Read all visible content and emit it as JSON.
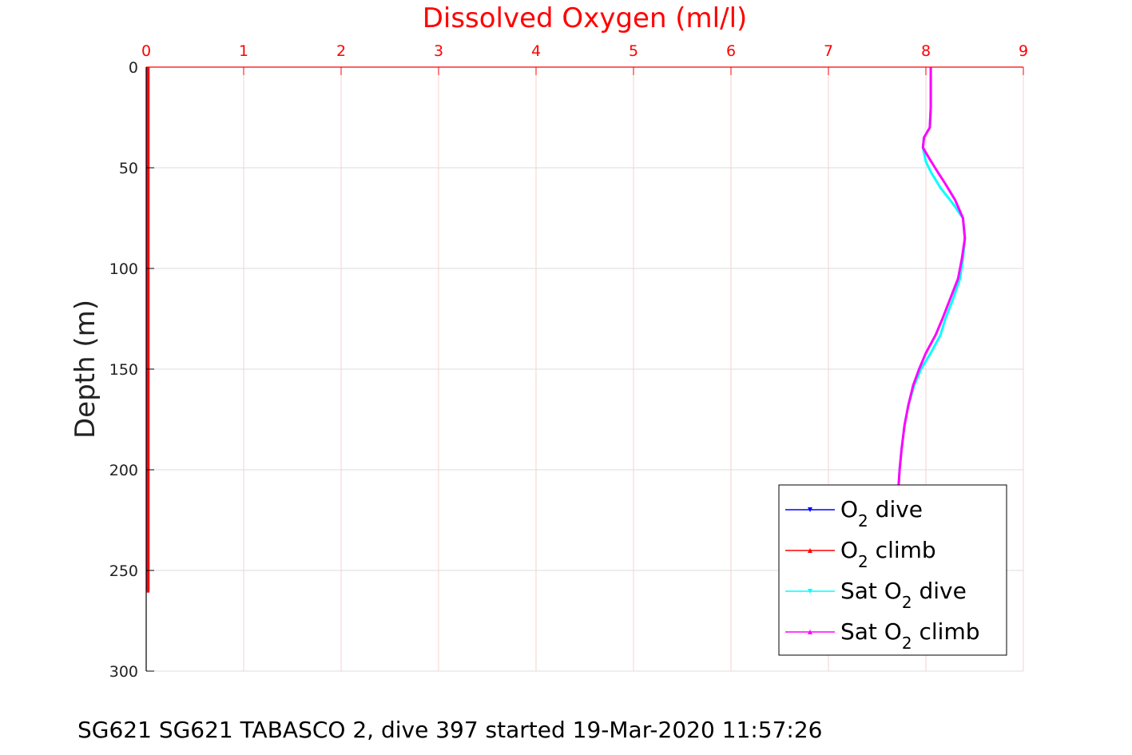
{
  "colors": {
    "top_axis": "#ff0000",
    "left_axis": "#000000",
    "o2_dive": "#0000ff",
    "o2_climb": "#ff0000",
    "sat_dive": "#00ffff",
    "sat_climb": "#ff00ff"
  },
  "caption": "SG621 SG621 TABASCO 2, dive 397 started 19-Mar-2020 11:57:26",
  "chart_data": {
    "type": "line",
    "title": "Dissolved Oxygen (ml/l)",
    "xlabel": "Dissolved Oxygen (ml/l)",
    "ylabel": "Depth (m)",
    "xlim": [
      0,
      9
    ],
    "ylim": [
      0,
      300
    ],
    "y_reversed": true,
    "x_axis_position": "top",
    "grid": true,
    "x_ticks": [
      "0",
      "1",
      "2",
      "3",
      "4",
      "5",
      "6",
      "7",
      "8",
      "9"
    ],
    "y_ticks": [
      "0",
      "50",
      "100",
      "150",
      "200",
      "250",
      "300"
    ],
    "legend": {
      "placement": "bottom-right",
      "entries": [
        {
          "prefix": "O",
          "sub": "2",
          "suffix": " dive"
        },
        {
          "prefix": "O",
          "sub": "2",
          "suffix": " climb"
        },
        {
          "prefix": "Sat O",
          "sub": "2",
          "suffix": " dive"
        },
        {
          "prefix": "Sat O",
          "sub": "2",
          "suffix": " climb"
        }
      ]
    },
    "series": [
      {
        "key": "o2_dive",
        "color": "#0000ff",
        "marker": "triangle-down",
        "points": [
          [
            0.02,
            0
          ],
          [
            0.02,
            50
          ],
          [
            0.02,
            100
          ],
          [
            0.02,
            150
          ],
          [
            0.02,
            200
          ],
          [
            0.02,
            260
          ]
        ]
      },
      {
        "key": "o2_climb",
        "color": "#ff0000",
        "marker": "triangle-up",
        "points": [
          [
            0.02,
            0
          ],
          [
            0.02,
            50
          ],
          [
            0.02,
            100
          ],
          [
            0.02,
            150
          ],
          [
            0.02,
            200
          ],
          [
            0.02,
            261
          ]
        ]
      },
      {
        "key": "sat_dive",
        "color": "#00ffff",
        "marker": "triangle-down",
        "points": [
          [
            8.05,
            0
          ],
          [
            8.05,
            20
          ],
          [
            8.04,
            30
          ],
          [
            7.98,
            35
          ],
          [
            7.97,
            40
          ],
          [
            8.0,
            47
          ],
          [
            8.05,
            52
          ],
          [
            8.15,
            60
          ],
          [
            8.28,
            68
          ],
          [
            8.38,
            75
          ],
          [
            8.4,
            85
          ],
          [
            8.38,
            95
          ],
          [
            8.35,
            105
          ],
          [
            8.28,
            115
          ],
          [
            8.2,
            125
          ],
          [
            8.15,
            133
          ],
          [
            8.05,
            142
          ],
          [
            7.95,
            150
          ],
          [
            7.88,
            158
          ],
          [
            7.82,
            168
          ],
          [
            7.78,
            178
          ],
          [
            7.75,
            190
          ],
          [
            7.73,
            200
          ],
          [
            7.72,
            208
          ]
        ]
      },
      {
        "key": "sat_climb",
        "color": "#ff00ff",
        "marker": "triangle-up",
        "points": [
          [
            8.05,
            0
          ],
          [
            8.05,
            20
          ],
          [
            8.04,
            30
          ],
          [
            7.98,
            35
          ],
          [
            7.97,
            40
          ],
          [
            8.03,
            45
          ],
          [
            8.12,
            52
          ],
          [
            8.2,
            58
          ],
          [
            8.3,
            66
          ],
          [
            8.38,
            75
          ],
          [
            8.4,
            85
          ],
          [
            8.37,
            95
          ],
          [
            8.33,
            105
          ],
          [
            8.25,
            115
          ],
          [
            8.17,
            125
          ],
          [
            8.1,
            133
          ],
          [
            8.0,
            142
          ],
          [
            7.93,
            150
          ],
          [
            7.87,
            158
          ],
          [
            7.82,
            168
          ],
          [
            7.78,
            178
          ],
          [
            7.75,
            190
          ],
          [
            7.73,
            200
          ],
          [
            7.72,
            208
          ]
        ]
      }
    ]
  }
}
